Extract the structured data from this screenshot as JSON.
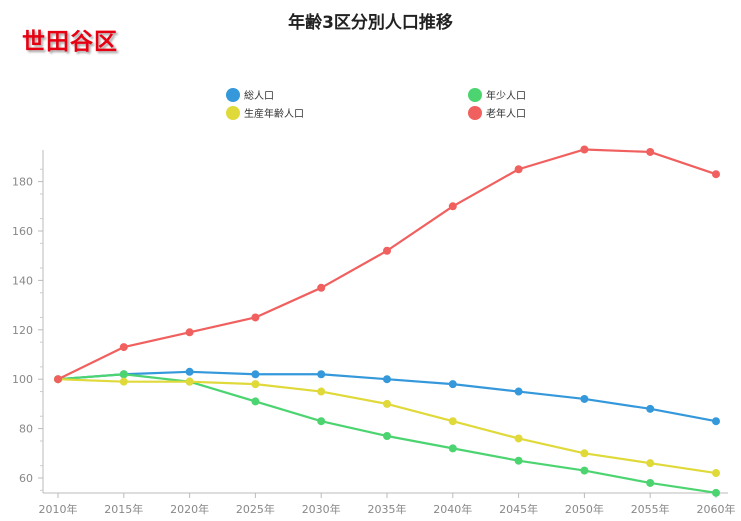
{
  "region_label": "世田谷区",
  "chart_data": {
    "type": "line",
    "title": "年齢3区分別人口推移",
    "categories": [
      "2010年",
      "2015年",
      "2020年",
      "2025年",
      "2030年",
      "2035年",
      "2040年",
      "2045年",
      "2050年",
      "2055年",
      "2060年"
    ],
    "ylim": [
      55,
      195
    ],
    "yticks": [
      60,
      80,
      100,
      120,
      140,
      160,
      180
    ],
    "grid": false,
    "legend_placement": "top",
    "series": [
      {
        "name": "総人口",
        "color": "#3498db",
        "values": [
          100,
          102,
          103,
          102,
          102,
          100,
          98,
          95,
          92,
          88,
          83
        ]
      },
      {
        "name": "年少人口",
        "color": "#4cd471",
        "values": [
          100,
          102,
          99,
          91,
          83,
          77,
          72,
          67,
          63,
          58,
          54
        ]
      },
      {
        "name": "生産年齢人口",
        "color": "#e0d93a",
        "values": [
          100,
          99,
          99,
          98,
          95,
          90,
          83,
          76,
          70,
          66,
          62
        ]
      },
      {
        "name": "老年人口",
        "color": "#f0605f",
        "values": [
          100,
          113,
          119,
          125,
          137,
          152,
          170,
          185,
          193,
          192,
          183
        ]
      }
    ]
  }
}
